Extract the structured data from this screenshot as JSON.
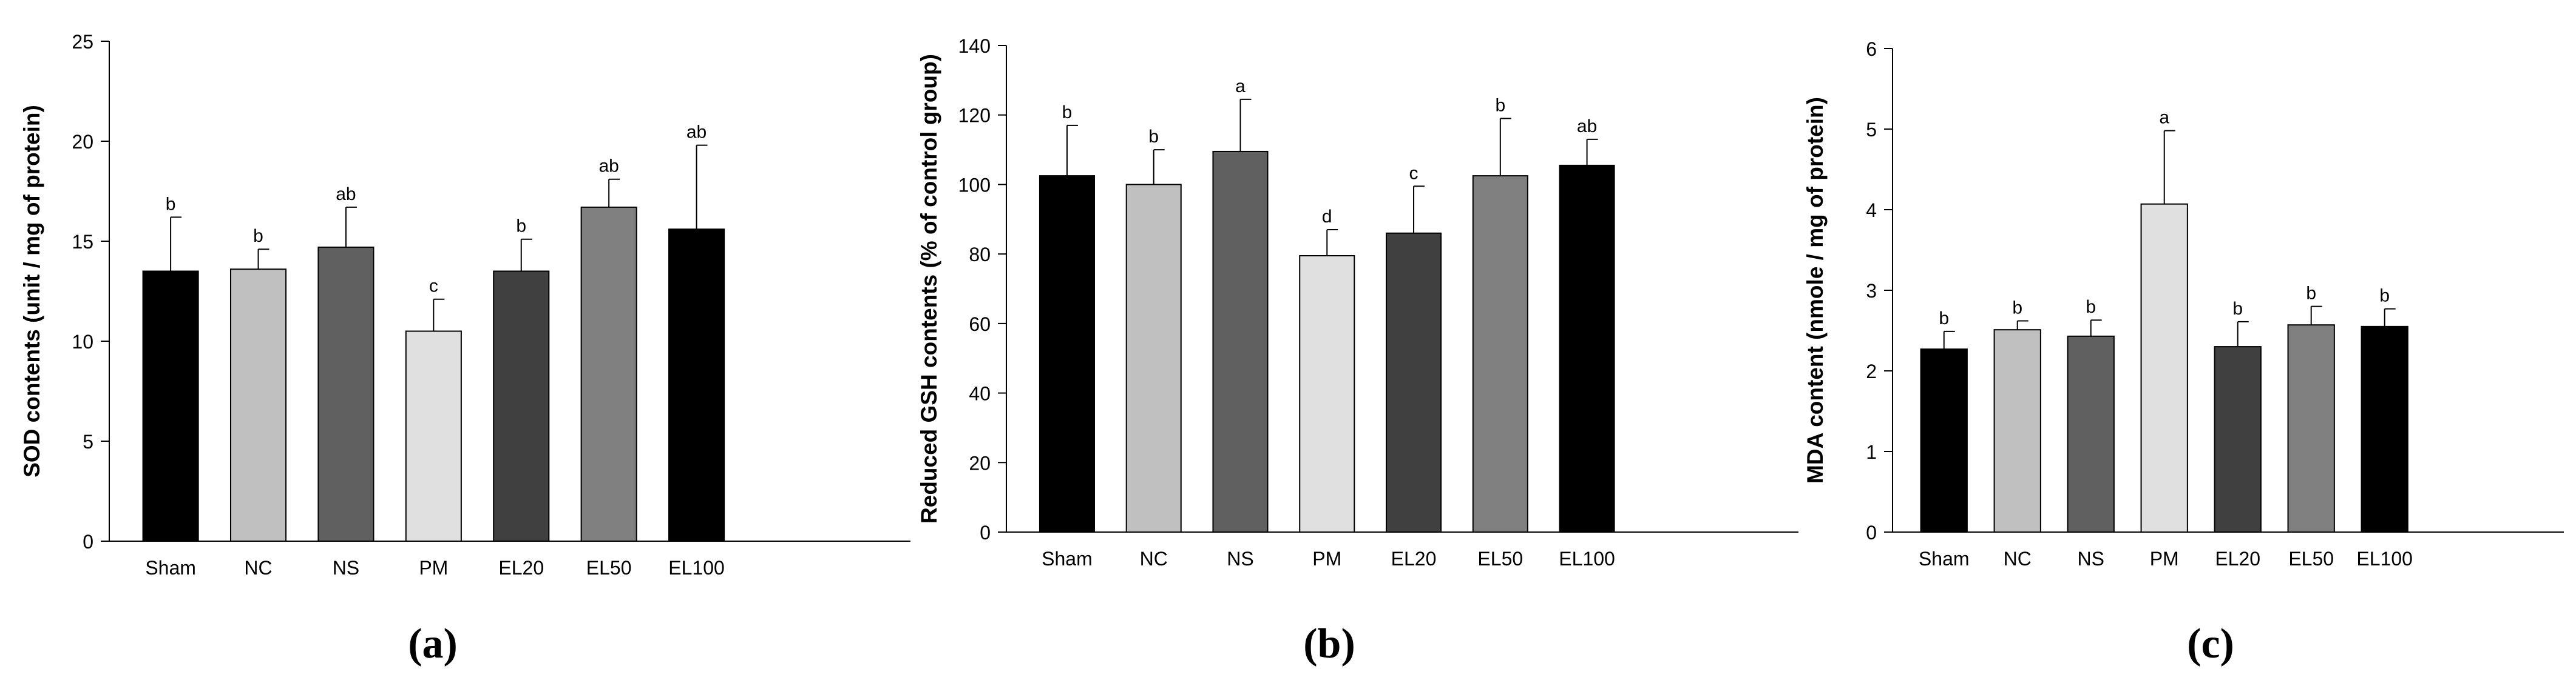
{
  "colors": {
    "Sham": "#000000",
    "NC": "#c0c0c0",
    "NS": "#606060",
    "PM": "#e0e0e0",
    "EL20": "#404040",
    "EL50": "#808080",
    "EL100": "#000000",
    "axis": "#000000"
  },
  "chart_data": [
    {
      "type": "bar",
      "panel_label": "(a)",
      "title": "",
      "xlabel": "",
      "ylabel": "SOD contents (unit / mg of protein)",
      "categories": [
        "Sham",
        "NC",
        "NS",
        "PM",
        "EL20",
        "EL50",
        "EL100"
      ],
      "values": [
        13.5,
        13.6,
        14.7,
        10.5,
        13.5,
        16.7,
        15.6
      ],
      "errors": [
        2.7,
        1.0,
        2.0,
        1.6,
        1.6,
        1.4,
        4.2
      ],
      "annotations": [
        "b",
        "b",
        "ab",
        "c",
        "b",
        "ab",
        "ab"
      ],
      "ylim": [
        0,
        25
      ],
      "yticks": [
        0,
        5,
        10,
        15,
        20,
        25
      ],
      "ytick_labels": [
        "0",
        "5",
        "10",
        "15",
        "20",
        "25"
      ]
    },
    {
      "type": "bar",
      "panel_label": "(b)",
      "title": "",
      "xlabel": "",
      "ylabel": "Reduced GSH contents (% of control group)",
      "categories": [
        "Sham",
        "NC",
        "NS",
        "PM",
        "EL20",
        "EL50",
        "EL100"
      ],
      "values": [
        102.5,
        100.0,
        109.5,
        79.5,
        86.0,
        102.5,
        105.5
      ],
      "errors": [
        14.5,
        10.0,
        15.0,
        7.5,
        13.5,
        16.5,
        7.5
      ],
      "annotations": [
        "b",
        "b",
        "a",
        "d",
        "c",
        "b",
        "ab"
      ],
      "ylim": [
        0,
        140
      ],
      "yticks": [
        0,
        20,
        40,
        60,
        80,
        100,
        120,
        140
      ],
      "ytick_labels": [
        "0",
        "20",
        "40",
        "60",
        "80",
        "100",
        "120",
        "140"
      ]
    },
    {
      "type": "bar",
      "panel_label": "(c)",
      "title": "",
      "xlabel": "",
      "ylabel": "MDA content (nmole / mg of protein)",
      "categories": [
        "Sham",
        "NC",
        "NS",
        "PM",
        "EL20",
        "EL50",
        "EL100"
      ],
      "values": [
        2.27,
        2.51,
        2.43,
        4.07,
        2.3,
        2.57,
        2.55
      ],
      "errors": [
        0.22,
        0.11,
        0.2,
        0.91,
        0.31,
        0.23,
        0.22
      ],
      "annotations": [
        "b",
        "b",
        "b",
        "a",
        "b",
        "b",
        "b"
      ],
      "ylim": [
        0,
        6
      ],
      "yticks": [
        0,
        1,
        2,
        3,
        4,
        5,
        6
      ],
      "ytick_labels": [
        "0",
        "1",
        "2",
        "3",
        "4",
        "5",
        "6"
      ]
    }
  ]
}
